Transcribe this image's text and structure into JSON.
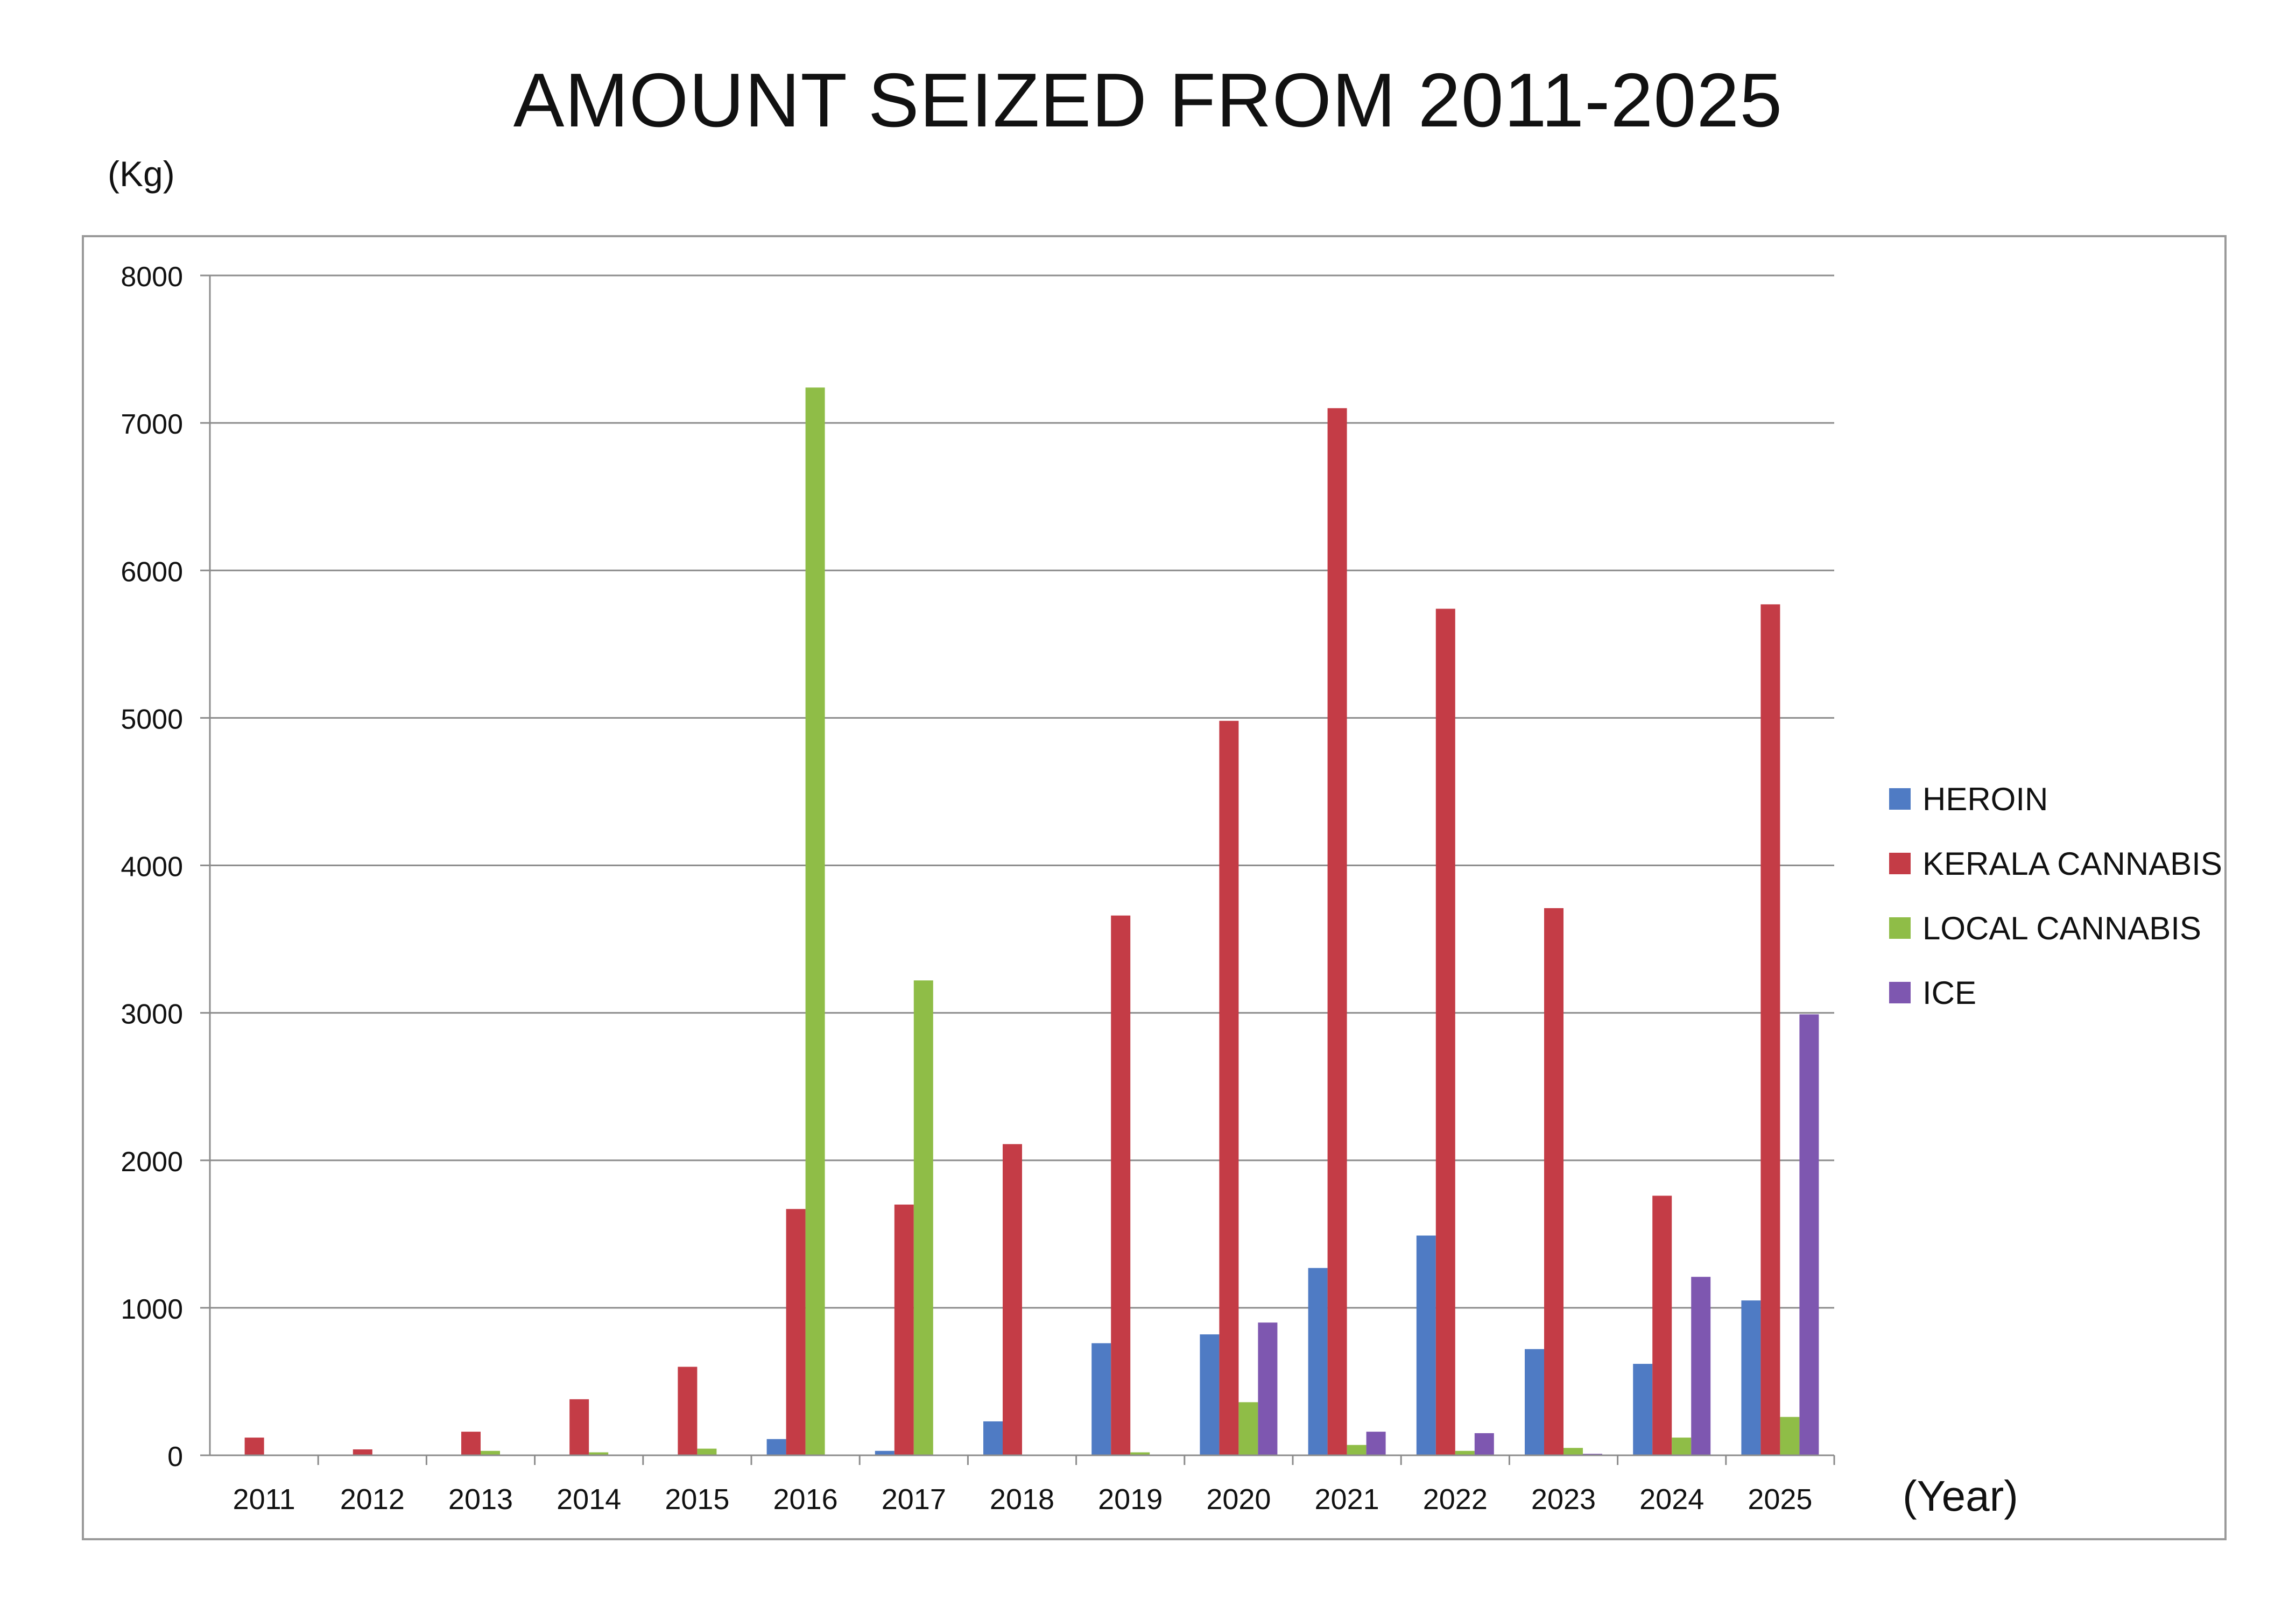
{
  "chart_data": {
    "type": "bar",
    "title": "AMOUNT SEIZED FROM 2011-2025",
    "ylabel": "(Kg)",
    "xlabel": "(Year)",
    "ylim": [
      0,
      8000
    ],
    "yticks": [
      0,
      1000,
      2000,
      3000,
      4000,
      5000,
      6000,
      7000,
      8000
    ],
    "grid": true,
    "legend_position": "right",
    "categories": [
      "2011",
      "2012",
      "2013",
      "2014",
      "2015",
      "2016",
      "2017",
      "2018",
      "2019",
      "2020",
      "2021",
      "2022",
      "2023",
      "2024",
      "2025"
    ],
    "series": [
      {
        "name": "HEROIN",
        "color": "#4f7bc4",
        "values": [
          0,
          0,
          0,
          0,
          0,
          110,
          30,
          230,
          760,
          820,
          1270,
          1490,
          720,
          620,
          1050
        ]
      },
      {
        "name": "KERALA CANNABIS",
        "color": "#c43c46",
        "values": [
          120,
          40,
          160,
          380,
          600,
          1670,
          1700,
          2110,
          3660,
          4980,
          7100,
          5740,
          3710,
          1760,
          5770
        ]
      },
      {
        "name": "LOCAL CANNABIS",
        "color": "#8fbd47",
        "values": [
          0,
          0,
          30,
          20,
          45,
          7240,
          3220,
          0,
          20,
          360,
          70,
          30,
          50,
          120,
          260
        ]
      },
      {
        "name": "ICE",
        "color": "#7e57b0",
        "values": [
          0,
          0,
          0,
          0,
          0,
          0,
          0,
          0,
          0,
          900,
          160,
          150,
          10,
          1210,
          2990
        ]
      }
    ]
  }
}
